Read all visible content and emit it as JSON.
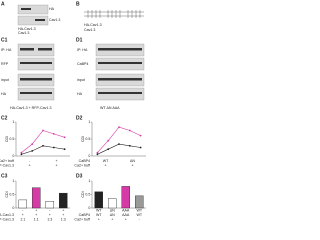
{
  "panels": {
    "a": {
      "label": "A",
      "rows": [
        "HA",
        "Cav1.3"
      ],
      "lanes": [
        "HA-Cav1.3",
        "Cav1.3"
      ]
    },
    "b": {
      "label": "B",
      "items": [
        "HA-Cav1.3",
        "Cav1.3"
      ]
    },
    "c1": {
      "label": "C1",
      "rows": [
        "IP: HA",
        "RFP",
        "input",
        "HA"
      ],
      "lanes": "HA-Cav1.3 + RFP-Cav1.3"
    },
    "d1": {
      "label": "D1",
      "rows": [
        "IP: HA",
        "CaBP4",
        "input",
        "HA"
      ],
      "lanes": "WT  ΔN  AAA"
    },
    "c2": {
      "label": "C2"
    },
    "d2": {
      "label": "D2"
    },
    "c3": {
      "label": "C3"
    },
    "d3": {
      "label": "D3"
    }
  },
  "charts": [
    {
      "type": "line",
      "ylabel": "CDI",
      "x": [
        -40,
        -20,
        0,
        20,
        40
      ],
      "xlim": [
        -50,
        50
      ],
      "ylim": [
        0,
        1
      ],
      "yticks": [
        0,
        0.5,
        1
      ],
      "series": [
        {
          "color": "#d63aa6",
          "values": [
            0.1,
            0.35,
            0.75,
            0.65,
            0.55
          ]
        },
        {
          "color": "#222222",
          "values": [
            0.05,
            0.15,
            0.3,
            0.25,
            0.2
          ]
        }
      ],
      "rows": [
        {
          "label": "Ca2+ buff",
          "cells": [
            "-",
            "+"
          ]
        },
        {
          "label": "RFP-Cav1.3",
          "cells": [
            "+",
            "+"
          ]
        }
      ]
    },
    {
      "type": "line",
      "ylabel": "CDI",
      "x": [
        -40,
        -20,
        0,
        20,
        40
      ],
      "xlim": [
        -50,
        50
      ],
      "ylim": [
        0,
        1
      ],
      "yticks": [
        0,
        0.5,
        1
      ],
      "series": [
        {
          "color": "#d63aa6",
          "values": [
            0.1,
            0.45,
            0.85,
            0.75,
            0.6
          ]
        },
        {
          "color": "#222222",
          "values": [
            0.05,
            0.2,
            0.35,
            0.3,
            0.25
          ]
        }
      ],
      "rows": [
        {
          "label": "CaBP4",
          "cells": [
            "WT",
            "ΔN"
          ]
        },
        {
          "label": "Ca2+ buff",
          "cells": [
            "+",
            "+"
          ]
        }
      ]
    },
    {
      "type": "bar",
      "ylabel": "CDI",
      "categories": [
        "-",
        "+",
        "-",
        "+"
      ],
      "values": [
        0.3,
        0.75,
        0.25,
        0.55
      ],
      "colors": [
        "#ffffff",
        "#d63aa6",
        "#ffffff",
        "#222222"
      ],
      "ylim": [
        0,
        1
      ],
      "yticks": [
        0,
        0.5,
        1
      ],
      "rows": [
        {
          "label": "HA-Cav1.3",
          "cells": [
            "+",
            "+",
            "+",
            "+"
          ]
        },
        {
          "label": "RFP-Cav1.3",
          "cells": [
            "1:1",
            "1:1",
            "1:3",
            "1:3"
          ]
        }
      ]
    },
    {
      "type": "bar",
      "ylabel": "CDI",
      "categories": [
        "WT",
        "ΔN",
        "AAA",
        "WT"
      ],
      "values": [
        0.6,
        0.35,
        0.8,
        0.45
      ],
      "colors": [
        "#222222",
        "#ffffff",
        "#d63aa6",
        "#999999"
      ],
      "ylim": [
        0,
        1
      ],
      "yticks": [
        0,
        0.5,
        1
      ],
      "rows": [
        {
          "label": "CaBP4",
          "cells": [
            "WT",
            "ΔN",
            "AAA",
            "WT"
          ]
        },
        {
          "label": "Ca2+ buff",
          "cells": [
            "+",
            "+",
            "+",
            "-"
          ]
        }
      ]
    }
  ]
}
